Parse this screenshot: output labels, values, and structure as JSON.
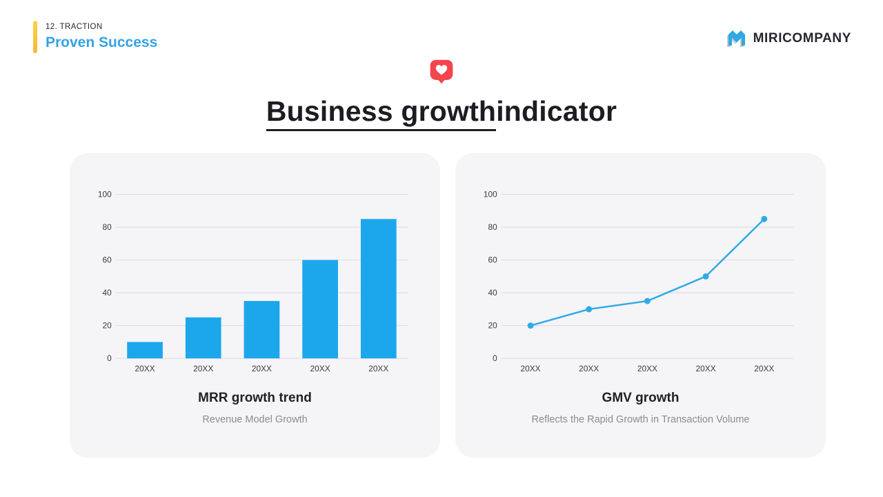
{
  "header": {
    "kicker": "12. TRACTION",
    "title": "Proven Success"
  },
  "logo": {
    "text": "MIRICOMPANY"
  },
  "hero": {
    "title_underlined": "Business growth",
    "title_rest": "indicator",
    "icon": "heart-like-bubble"
  },
  "colors": {
    "accent_blue": "#34A3E4",
    "accent_yellow": "#F8C33E",
    "heart_red": "#F2454E",
    "bar_blue": "#1CA7ED",
    "line_blue": "#2FAAE8",
    "grid": "#DADADF",
    "tick": "#3B3B3F",
    "card_bg": "#F5F4F6",
    "logo_dark": "#26262E",
    "logo_gray": "#C3C8D0",
    "logo_blue": "#2FA9E1"
  },
  "chart_data": [
    {
      "type": "bar",
      "title": "MRR growth trend",
      "subtitle": "Revenue Model Growth",
      "categories": [
        "20XX",
        "20XX",
        "20XX",
        "20XX",
        "20XX"
      ],
      "values": [
        10,
        25,
        35,
        60,
        85
      ],
      "ylim": [
        0,
        100
      ],
      "yticks": [
        0,
        20,
        40,
        60,
        80,
        100
      ],
      "grid": true,
      "legend": false,
      "color": "#1CA7ED"
    },
    {
      "type": "line",
      "title": "GMV growth",
      "subtitle": "Reflects the Rapid Growth in Transaction Volume",
      "categories": [
        "20XX",
        "20XX",
        "20XX",
        "20XX",
        "20XX"
      ],
      "values": [
        20,
        30,
        35,
        50,
        85
      ],
      "ylim": [
        0,
        100
      ],
      "yticks": [
        0,
        20,
        40,
        60,
        80,
        100
      ],
      "grid": true,
      "legend": false,
      "color": "#2FAAE8"
    }
  ]
}
